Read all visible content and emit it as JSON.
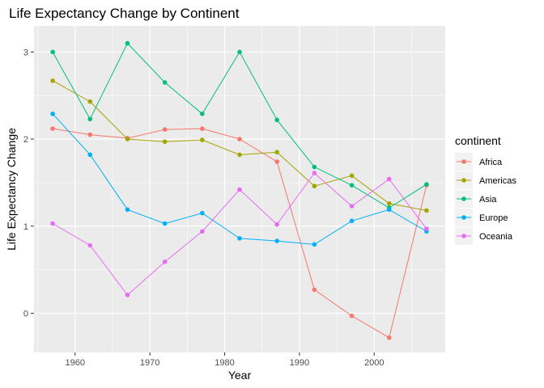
{
  "chart_data": {
    "type": "line",
    "title": "Life Expectancy Change by Continent",
    "xlabel": "Year",
    "ylabel": "Life Expectancy Change",
    "xlim": [
      1954.5,
      2009.5
    ],
    "ylim": [
      -0.45,
      3.3
    ],
    "x_ticks": [
      1960,
      1970,
      1980,
      1990,
      2000
    ],
    "y_ticks": [
      0,
      1,
      2,
      3
    ],
    "grid": true,
    "legend_title": "continent",
    "legend_position": "right",
    "x": [
      1957,
      1962,
      1967,
      1972,
      1977,
      1982,
      1987,
      1992,
      1997,
      2002,
      2007
    ],
    "series": [
      {
        "name": "Africa",
        "color": "#F8766D",
        "values": [
          2.12,
          2.05,
          2.01,
          2.11,
          2.12,
          2.0,
          1.74,
          0.27,
          -0.03,
          -0.28,
          1.47
        ]
      },
      {
        "name": "Americas",
        "color": "#A3A500",
        "values": [
          2.67,
          2.43,
          2.0,
          1.97,
          1.99,
          1.82,
          1.85,
          1.46,
          1.58,
          1.26,
          1.18
        ]
      },
      {
        "name": "Asia",
        "color": "#00BF7D",
        "values": [
          3.0,
          2.23,
          3.1,
          2.65,
          2.29,
          3.0,
          2.22,
          1.68,
          1.47,
          1.21,
          1.48
        ]
      },
      {
        "name": "Europe",
        "color": "#00B0F6",
        "values": [
          2.29,
          1.82,
          1.19,
          1.03,
          1.15,
          0.86,
          0.83,
          0.79,
          1.06,
          1.19,
          0.94
        ]
      },
      {
        "name": "Oceania",
        "color": "#E76BF3",
        "values": [
          1.03,
          0.78,
          0.21,
          0.59,
          0.94,
          1.42,
          1.02,
          1.61,
          1.23,
          1.54,
          0.97
        ]
      }
    ]
  }
}
